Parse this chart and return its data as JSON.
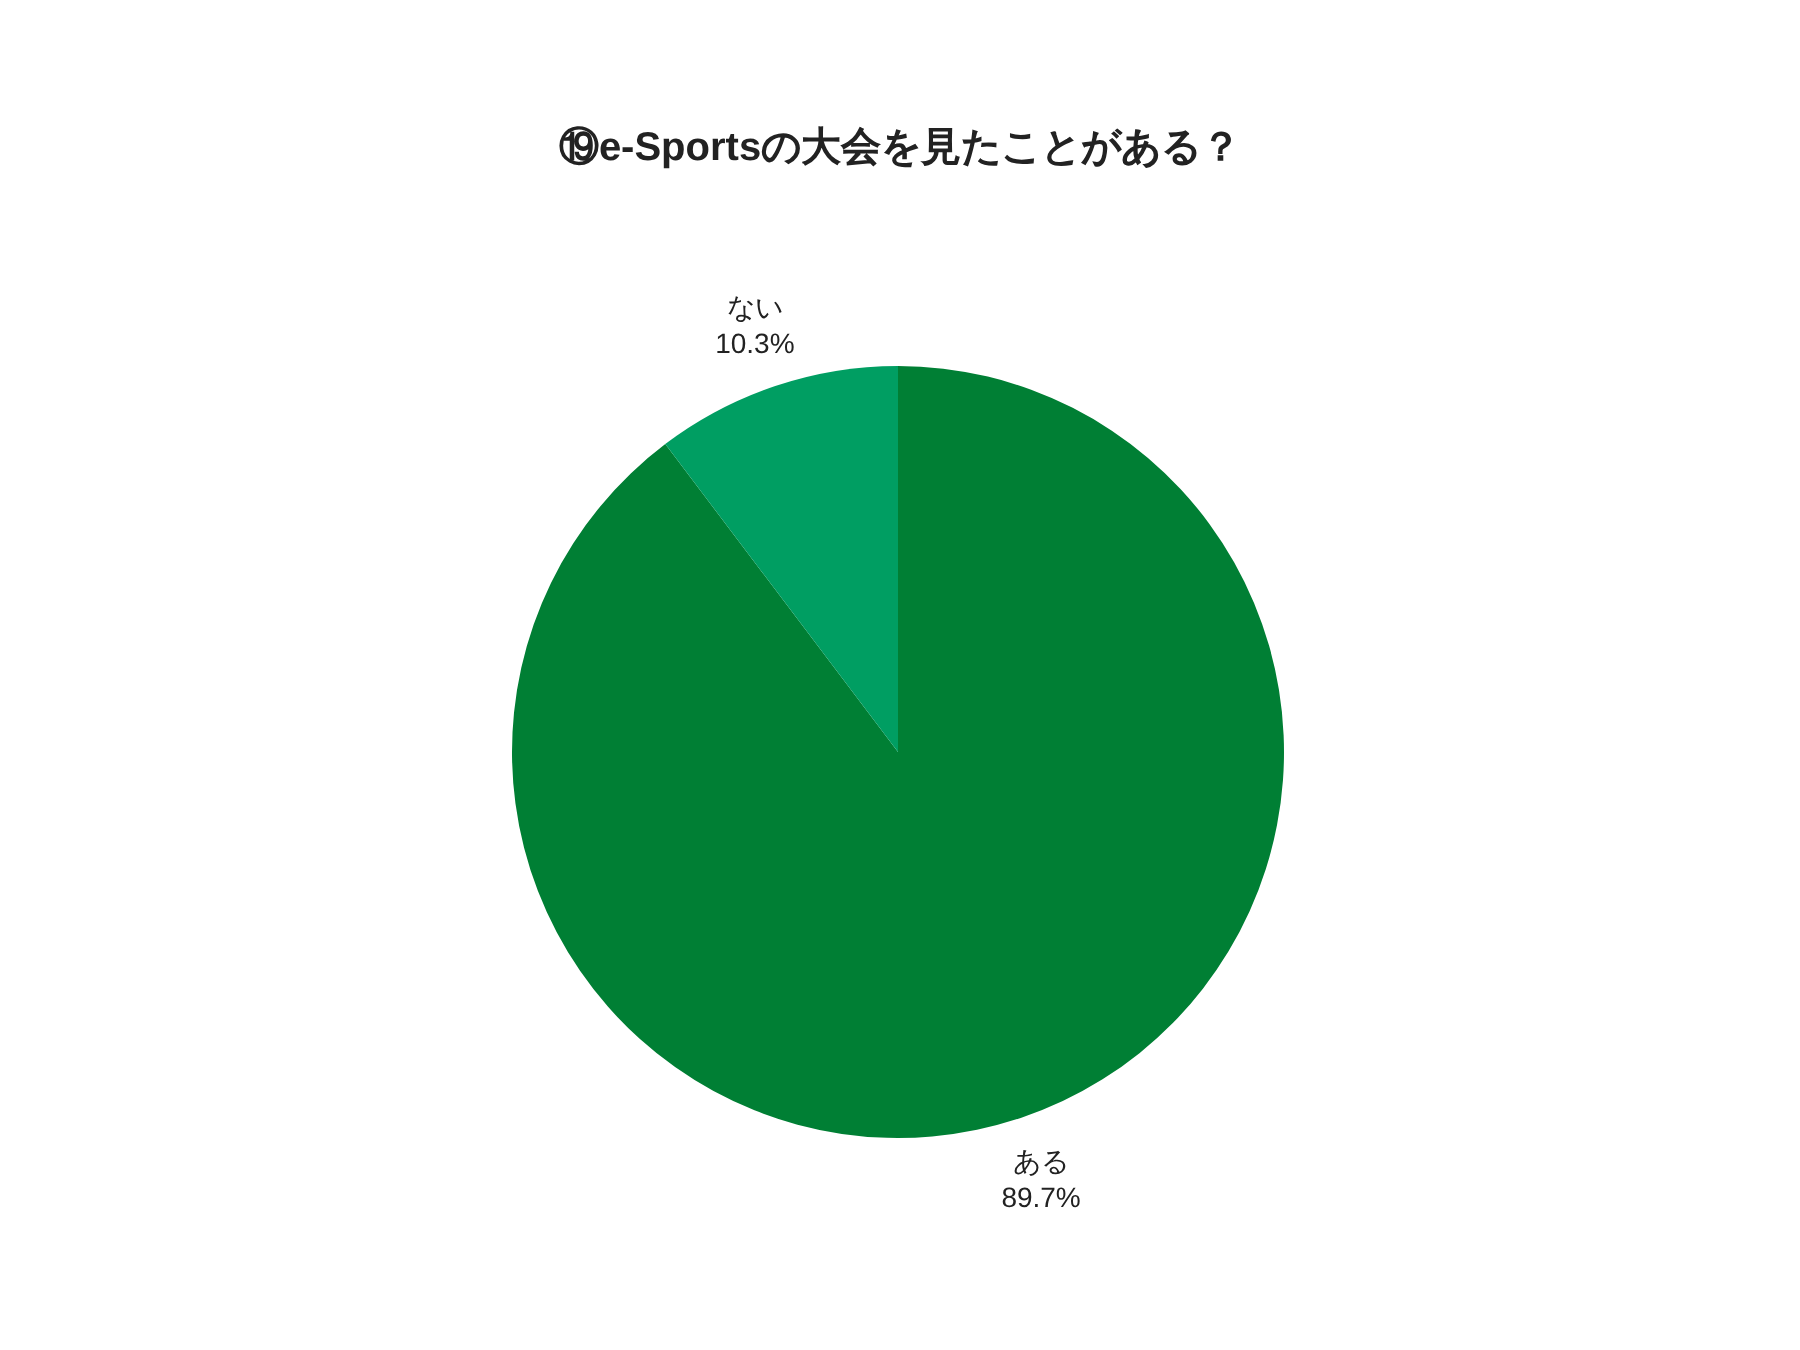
{
  "chart_data": {
    "type": "pie",
    "title": "⑲e-Sportsの大会を見たことがある？",
    "categories": [
      "ある",
      "ない"
    ],
    "values": [
      89.7,
      10.3
    ],
    "colors": [
      "#007f34",
      "#009e62"
    ],
    "value_labels": [
      "89.7%",
      "10.3%"
    ],
    "legend": false
  }
}
